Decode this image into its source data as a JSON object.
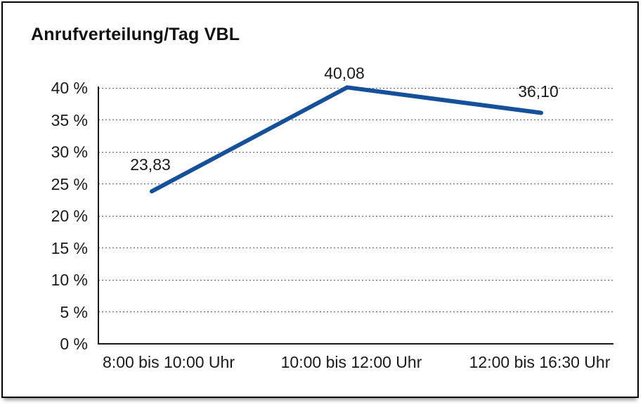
{
  "window": {
    "background": "#ffffff",
    "frame_border_color": "#000000"
  },
  "chart_data": {
    "type": "line",
    "title": "Anrufverteilung/Tag VBL",
    "categories": [
      "8:00 bis 10:00 Uhr",
      "10:00 bis 12:00 Uhr",
      "12:00 bis 16:30 Uhr"
    ],
    "values": [
      23.83,
      40.08,
      36.1
    ],
    "value_labels": [
      "23,83",
      "40,08",
      "36,10"
    ],
    "xlabel": "",
    "ylabel": "",
    "ylim": [
      0,
      40
    ],
    "ytick_step": 5,
    "ytick_labels": [
      "0 %",
      "5 %",
      "10 %",
      "15 %",
      "20 %",
      "25 %",
      "30 %",
      "35 %",
      "40 %"
    ],
    "grid": "horizontal-dotted",
    "legend": "none",
    "line_color": "#15509b",
    "text_color": "#1a1a1a"
  }
}
